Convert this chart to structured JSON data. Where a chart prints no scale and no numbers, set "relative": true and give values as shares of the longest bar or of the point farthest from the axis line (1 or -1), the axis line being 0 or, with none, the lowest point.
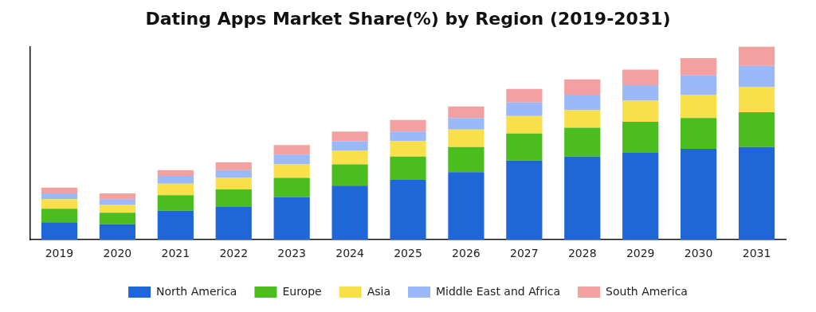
{
  "chart_data": {
    "type": "bar",
    "title": "Dating Apps Market Share(%) by Region (2019-2031)",
    "categories": [
      "2019",
      "2020",
      "2021",
      "2022",
      "2023",
      "2024",
      "2025",
      "2026",
      "2027",
      "2028",
      "2029",
      "2030",
      "2031"
    ],
    "stacked": true,
    "relative": true,
    "grid": false,
    "legend": "bottom",
    "series": [
      {
        "name": "North America",
        "color": "#1f66d6",
        "values": [
          0.09,
          0.08,
          0.15,
          0.17,
          0.22,
          0.28,
          0.31,
          0.35,
          0.41,
          0.43,
          0.45,
          0.47,
          0.48
        ]
      },
      {
        "name": "Europe",
        "color": "#4cbd1e",
        "values": [
          0.07,
          0.06,
          0.08,
          0.09,
          0.1,
          0.11,
          0.12,
          0.13,
          0.14,
          0.15,
          0.16,
          0.16,
          0.18
        ]
      },
      {
        "name": "Asia",
        "color": "#f9e04b",
        "values": [
          0.05,
          0.04,
          0.06,
          0.06,
          0.07,
          0.07,
          0.08,
          0.09,
          0.09,
          0.09,
          0.11,
          0.12,
          0.13
        ]
      },
      {
        "name": "Middle East and Africa",
        "color": "#9bb8f8",
        "values": [
          0.03,
          0.03,
          0.04,
          0.04,
          0.05,
          0.05,
          0.05,
          0.06,
          0.07,
          0.08,
          0.08,
          0.1,
          0.11
        ]
      },
      {
        "name": "South America",
        "color": "#f2a0a0",
        "values": [
          0.03,
          0.03,
          0.03,
          0.04,
          0.05,
          0.05,
          0.06,
          0.06,
          0.07,
          0.08,
          0.08,
          0.09,
          0.1
        ]
      }
    ]
  }
}
